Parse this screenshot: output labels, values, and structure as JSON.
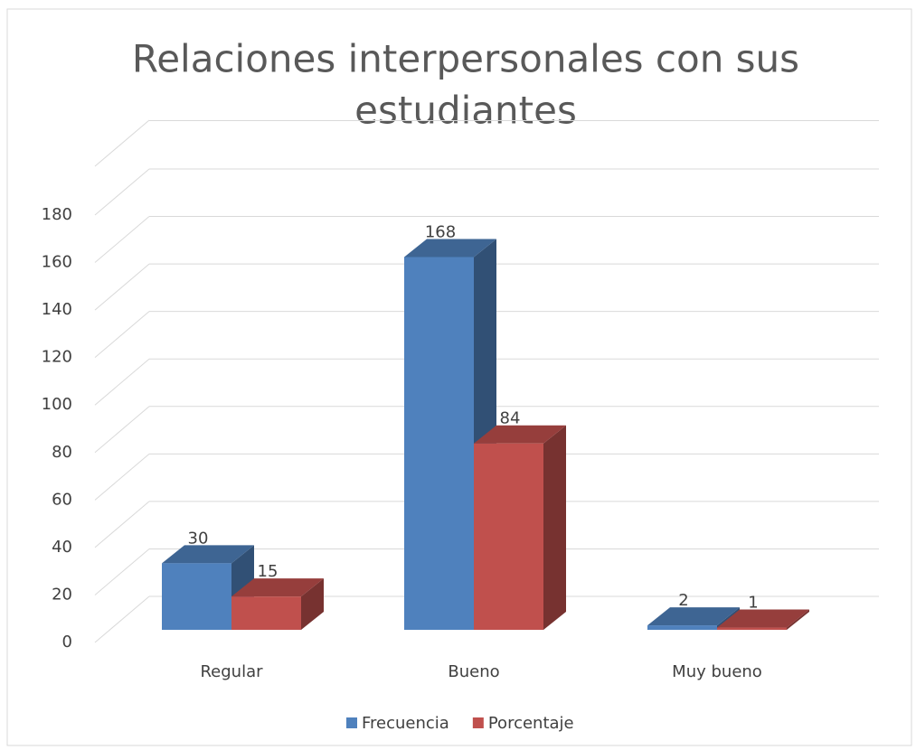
{
  "chart_data": {
    "type": "bar3d",
    "title": [
      "Relaciones interpersonales con sus",
      "estudiantes"
    ],
    "categories": [
      "Regular",
      "Bueno",
      "Muy bueno"
    ],
    "series": [
      {
        "name": "Frecuencia",
        "color": "#4f81bd",
        "values": [
          30,
          168,
          2
        ]
      },
      {
        "name": "Porcentaje",
        "color": "#c0504d",
        "values": [
          15,
          84,
          1
        ]
      }
    ],
    "ylim": [
      0,
      180
    ],
    "yticks": [
      0,
      20,
      40,
      60,
      80,
      100,
      120,
      140,
      160,
      180
    ],
    "grid": true,
    "legend": "bottom"
  }
}
